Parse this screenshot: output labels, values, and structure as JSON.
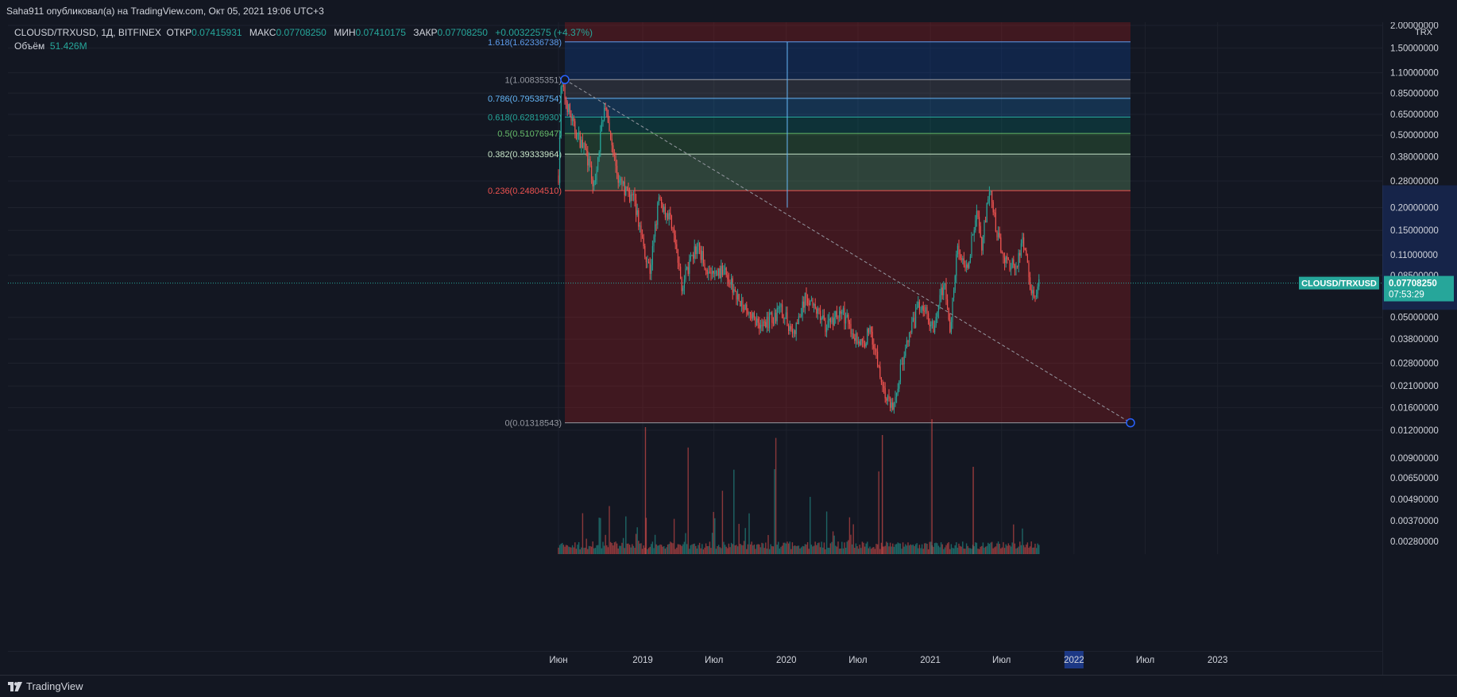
{
  "header": {
    "publish_line": "Saha911 опубликовал(а) на TradingView.com, Окт 05, 2021 19:06 UTC+3"
  },
  "legend": {
    "symbol": "CLOUSD/TRXUSD, 1Д, BITFINEX",
    "open_label": "ОТКР",
    "open_value": "0.07415931",
    "high_label": "МАКС",
    "high_value": "0.07708250",
    "low_label": "МИН",
    "low_value": "0.07410175",
    "close_label": "ЗАКР",
    "close_value": "0.07708250",
    "change": "+0.00322575 (+4.37%)",
    "volume_label": "Объём",
    "volume_value": "51.426M"
  },
  "price_axis": {
    "currency": "TRX",
    "ticks": [
      "2.00000000",
      "1.50000000",
      "1.10000000",
      "0.85000000",
      "0.65000000",
      "0.50000000",
      "0.38000000",
      "0.28000000",
      "0.20000000",
      "0.15000000",
      "0.11000000",
      "0.08500000",
      "0.05000000",
      "0.03800000",
      "0.02800000",
      "0.02100000",
      "0.01600000",
      "0.01200000",
      "0.00900000",
      "0.00650000",
      "0.00490000",
      "0.00370000",
      "0.00280000"
    ],
    "current_price": "0.07708250",
    "countdown": "07:53:29",
    "symbol_tag": "CLOUSD/TRXUSD"
  },
  "time_axis": {
    "labels": [
      "Июн",
      "2019",
      "Июл",
      "2020",
      "Июл",
      "2021",
      "Июл",
      "2022",
      "Июл",
      "2023"
    ]
  },
  "fibonacci": {
    "levels": [
      {
        "text": "1.618(1.62336738)",
        "color": "#5d9cec"
      },
      {
        "text": "1(1.00835351)",
        "color": "#9598a1"
      },
      {
        "text": "0.786(0.79538754)",
        "color": "#64b5f6"
      },
      {
        "text": "0.618(0.62819930)",
        "color": "#26a69a"
      },
      {
        "text": "0.5(0.51076947)",
        "color": "#66bb6a"
      },
      {
        "text": "0.382(0.39333964)",
        "color": "#c8e6c9"
      },
      {
        "text": "0.236(0.24804510)",
        "color": "#ef5350"
      },
      {
        "text": "0(0.01318543)",
        "color": "#9598a1"
      }
    ]
  },
  "colors": {
    "up": "#26a69a",
    "down": "#ef5350",
    "background": "#131722"
  },
  "branding": {
    "logo_text": "TradingView"
  },
  "chart_data": {
    "type": "candlestick",
    "title": "CLOUSD/TRXUSD, 1Д, BITFINEX",
    "y_scale": "log",
    "ylim": [
      0.0024,
      2.0
    ],
    "x": [
      "2018-06",
      "2018-08",
      "2018-10",
      "2019-01",
      "2019-03",
      "2019-05",
      "2019-07",
      "2019-10",
      "2020-01",
      "2020-03",
      "2020-05",
      "2020-07",
      "2020-09",
      "2020-11",
      "2021-01",
      "2021-03",
      "2021-05",
      "2021-07",
      "2021-09",
      "2021-10"
    ],
    "series": [
      {
        "name": "CLOUSD/TRXUSD",
        "values": [
          0.9,
          0.55,
          0.6,
          0.22,
          0.19,
          0.13,
          0.09,
          0.075,
          0.06,
          0.05,
          0.055,
          0.045,
          0.04,
          0.02,
          0.03,
          0.06,
          0.2,
          0.12,
          0.09,
          0.077
        ]
      }
    ],
    "last_close": 0.0770825
  }
}
